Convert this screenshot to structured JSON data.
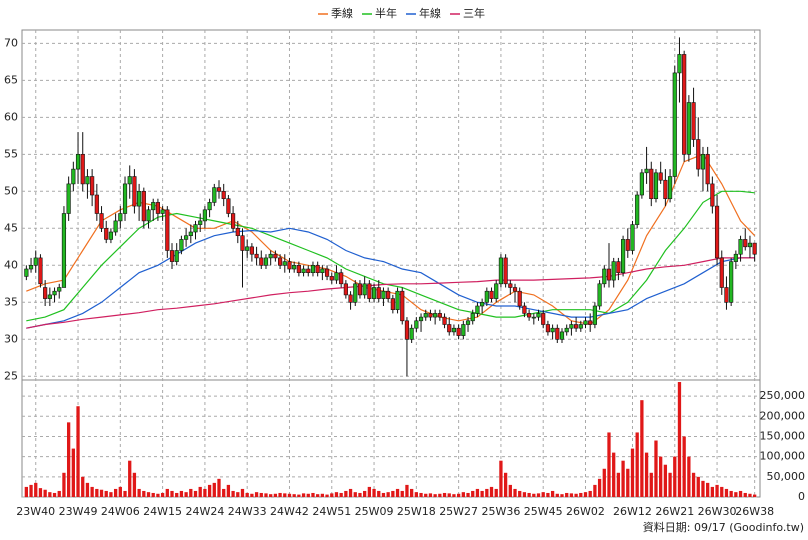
{
  "chart_data": {
    "type": "candlestick",
    "categories": [
      null,
      null,
      "23W40",
      null,
      null,
      null,
      null,
      null,
      null,
      null,
      null,
      "23W49",
      null,
      null,
      null,
      null,
      null,
      null,
      null,
      null,
      "24W06",
      null,
      null,
      null,
      null,
      null,
      null,
      null,
      null,
      "24W15",
      null,
      null,
      null,
      null,
      null,
      null,
      null,
      null,
      "24W24",
      null,
      null,
      null,
      null,
      null,
      null,
      null,
      null,
      "24W33",
      null,
      null,
      null,
      null,
      null,
      null,
      null,
      null,
      "24W42",
      null,
      null,
      null,
      null,
      null,
      null,
      null,
      null,
      "24W51",
      null,
      null,
      null,
      null,
      null,
      null,
      null,
      null,
      "25W09",
      null,
      null,
      null,
      null,
      null,
      null,
      null,
      null,
      "25W18",
      null,
      null,
      null,
      null,
      null,
      null,
      null,
      null,
      "25W27",
      null,
      null,
      null,
      null,
      null,
      null,
      null,
      null,
      "25W36",
      null,
      null,
      null,
      null,
      null,
      null,
      null,
      null,
      "25W45",
      null,
      null,
      null,
      null,
      null,
      null,
      null,
      null,
      "26W02",
      null,
      null,
      null,
      null,
      null,
      null,
      null,
      null,
      null,
      "26W12",
      null,
      null,
      null,
      null,
      null,
      null,
      null,
      null,
      "26W21",
      null,
      null,
      null,
      null,
      null,
      null,
      null,
      null,
      "26W30",
      null,
      null,
      null,
      null,
      null,
      null,
      null,
      "26W38"
    ],
    "ohlc": [
      [
        38.5,
        40,
        38,
        39.5
      ],
      [
        39.5,
        41,
        39,
        40
      ],
      [
        40,
        42,
        39,
        41
      ],
      [
        41,
        41.5,
        37,
        37.5
      ],
      [
        37,
        38,
        34.5,
        35.5
      ],
      [
        35.5,
        37,
        34.5,
        36
      ],
      [
        36,
        37,
        35,
        36.5
      ],
      [
        36.5,
        37.5,
        35.5,
        37
      ],
      [
        37,
        48,
        37,
        47
      ],
      [
        47,
        52,
        46,
        51
      ],
      [
        51,
        54,
        50,
        53
      ],
      [
        53,
        58,
        51,
        55
      ],
      [
        55,
        58,
        50,
        51
      ],
      [
        51,
        53,
        49,
        52
      ],
      [
        52,
        53,
        48,
        49.5
      ],
      [
        49.5,
        51,
        46,
        47
      ],
      [
        47,
        48,
        44.5,
        45
      ],
      [
        45,
        46,
        43,
        43.5
      ],
      [
        43.5,
        45,
        43,
        44.5
      ],
      [
        44.5,
        47,
        44,
        46
      ],
      [
        46,
        48,
        45,
        47
      ],
      [
        47,
        52,
        46,
        51
      ],
      [
        51,
        53.5,
        49,
        52
      ],
      [
        52,
        53,
        47,
        48
      ],
      [
        48,
        51,
        46,
        50
      ],
      [
        50,
        50.5,
        45,
        46
      ],
      [
        46,
        48,
        45,
        47.5
      ],
      [
        47.5,
        49,
        46,
        48.5
      ],
      [
        48.5,
        49,
        46,
        47
      ],
      [
        47,
        48,
        46,
        47.5
      ],
      [
        47.5,
        48,
        41,
        42
      ],
      [
        42,
        43,
        39.5,
        40.5
      ],
      [
        40.5,
        43,
        40,
        42
      ],
      [
        42,
        44,
        41.5,
        43.5
      ],
      [
        43.5,
        45,
        42.5,
        44
      ],
      [
        44,
        45.5,
        43,
        44.5
      ],
      [
        44.5,
        46,
        43.5,
        45.5
      ],
      [
        45.5,
        47,
        44.5,
        46
      ],
      [
        46,
        48,
        45,
        47.5
      ],
      [
        47.5,
        49,
        46.5,
        48.5
      ],
      [
        48.5,
        51,
        48,
        50.5
      ],
      [
        50.5,
        51.5,
        49,
        50
      ],
      [
        50,
        51,
        48,
        49
      ],
      [
        49,
        49.5,
        46.5,
        47
      ],
      [
        47,
        48,
        44.5,
        45
      ],
      [
        45,
        46,
        43,
        44
      ],
      [
        44,
        45,
        37,
        42
      ],
      [
        42,
        43.5,
        41,
        42.5
      ],
      [
        42.5,
        43,
        40.5,
        41.5
      ],
      [
        41.5,
        42.5,
        40,
        41
      ],
      [
        41,
        42,
        39.5,
        40
      ],
      [
        40,
        41.5,
        39.5,
        41
      ],
      [
        41,
        42,
        40,
        41.5
      ],
      [
        41.5,
        42,
        40.5,
        41
      ],
      [
        41,
        41.5,
        39.5,
        40
      ],
      [
        40,
        41.5,
        39,
        40.5
      ],
      [
        40.5,
        41,
        39,
        39.5
      ],
      [
        39.5,
        40.5,
        39,
        40
      ],
      [
        40,
        40.5,
        38.5,
        39
      ],
      [
        39,
        40,
        38.5,
        39.5
      ],
      [
        39.5,
        40,
        38.5,
        39
      ],
      [
        39,
        40.5,
        38.5,
        40
      ],
      [
        40,
        40.5,
        38.5,
        39
      ],
      [
        39,
        40,
        38,
        39.5
      ],
      [
        39.5,
        40,
        38,
        38.5
      ],
      [
        38.5,
        39,
        37.5,
        38
      ],
      [
        38,
        40,
        37.5,
        39
      ],
      [
        39,
        39.5,
        37,
        37.5
      ],
      [
        37.5,
        38,
        35.5,
        36
      ],
      [
        36,
        36.5,
        34,
        35
      ],
      [
        35,
        38,
        34.5,
        37.5
      ],
      [
        37.5,
        38,
        35.5,
        36
      ],
      [
        36,
        38.5,
        35.5,
        37.5
      ],
      [
        37.5,
        38,
        35,
        35.5
      ],
      [
        35.5,
        37.5,
        35,
        37
      ],
      [
        37,
        38,
        35,
        35.5
      ],
      [
        35.5,
        37,
        34.5,
        36.5
      ],
      [
        36.5,
        37,
        35,
        35.5
      ],
      [
        35.5,
        36,
        33.5,
        34
      ],
      [
        34,
        37,
        33.5,
        36.5
      ],
      [
        36.5,
        37,
        32,
        32.5
      ],
      [
        32.5,
        33,
        25,
        30
      ],
      [
        30,
        32,
        29.5,
        31.5
      ],
      [
        31.5,
        33,
        31,
        32.5
      ],
      [
        32.5,
        33.5,
        31,
        33
      ],
      [
        33,
        34,
        32.5,
        33.5
      ],
      [
        33.5,
        34,
        32.5,
        33
      ],
      [
        33,
        34,
        32,
        33.5
      ],
      [
        33.5,
        34,
        32.5,
        33
      ],
      [
        33,
        33.5,
        31.5,
        32
      ],
      [
        32,
        33,
        30.5,
        31
      ],
      [
        31,
        32,
        30.5,
        31.5
      ],
      [
        31.5,
        32,
        30,
        30.5
      ],
      [
        30.5,
        32.5,
        30,
        32
      ],
      [
        32,
        33,
        31,
        32.5
      ],
      [
        32.5,
        34,
        32,
        33.5
      ],
      [
        33.5,
        35,
        33,
        34.5
      ],
      [
        34.5,
        35.5,
        33.5,
        35
      ],
      [
        35,
        37,
        34.5,
        36.5
      ],
      [
        36.5,
        37,
        35,
        35.5
      ],
      [
        35.5,
        38,
        35,
        37.5
      ],
      [
        37.5,
        41.5,
        37,
        41
      ],
      [
        41,
        41.5,
        37,
        37.5
      ],
      [
        37.5,
        38,
        36,
        37
      ],
      [
        37,
        37.5,
        35,
        36.5
      ],
      [
        36.5,
        37,
        34,
        34.5
      ],
      [
        34.5,
        35,
        33,
        33.5
      ],
      [
        33.5,
        34,
        32.5,
        33
      ],
      [
        33,
        33.5,
        32,
        33
      ],
      [
        33,
        34,
        32.5,
        33.5
      ],
      [
        33.5,
        34,
        31.5,
        32
      ],
      [
        32,
        32.5,
        30.5,
        31
      ],
      [
        31,
        32,
        30,
        31.5
      ],
      [
        31.5,
        32,
        29.5,
        30
      ],
      [
        30,
        31.5,
        29.5,
        31
      ],
      [
        31,
        32,
        30.5,
        31.5
      ],
      [
        31.5,
        32.5,
        30.5,
        32
      ],
      [
        32,
        33,
        31,
        31.5
      ],
      [
        31.5,
        32.5,
        31,
        32
      ],
      [
        32,
        33,
        31.5,
        32.5
      ],
      [
        32.5,
        33.5,
        31,
        32
      ],
      [
        32,
        35,
        31.5,
        34.5
      ],
      [
        34.5,
        38,
        34,
        37.5
      ],
      [
        37.5,
        40,
        37,
        39.5
      ],
      [
        39.5,
        43,
        37,
        38
      ],
      [
        38,
        41,
        37,
        40.5
      ],
      [
        40.5,
        41,
        38,
        39
      ],
      [
        39,
        44,
        38.5,
        43.5
      ],
      [
        43.5,
        45,
        41,
        42
      ],
      [
        42,
        46,
        41.5,
        45.5
      ],
      [
        45.5,
        50,
        45,
        49.5
      ],
      [
        49.5,
        53,
        49,
        52.5
      ],
      [
        52.5,
        56,
        51,
        53
      ],
      [
        53,
        54,
        48,
        49
      ],
      [
        49,
        53,
        48.5,
        52.5
      ],
      [
        52.5,
        54,
        51,
        51.5
      ],
      [
        51.5,
        53,
        48,
        49
      ],
      [
        49,
        53,
        48.5,
        52
      ],
      [
        52,
        67,
        51,
        66
      ],
      [
        66,
        70.8,
        62,
        68.5
      ],
      [
        68.5,
        69,
        54,
        55
      ],
      [
        55,
        63,
        54,
        62
      ],
      [
        62,
        64,
        56,
        57
      ],
      [
        57,
        60,
        52,
        53
      ],
      [
        53,
        56,
        50,
        55
      ],
      [
        55,
        56,
        50,
        51
      ],
      [
        51,
        52,
        47,
        48
      ],
      [
        48,
        49.5,
        40,
        41
      ],
      [
        41,
        42,
        36,
        37
      ],
      [
        37,
        38.5,
        34,
        35
      ],
      [
        35,
        41,
        34.5,
        40.5
      ],
      [
        40.5,
        42,
        39.5,
        41.5
      ],
      [
        41.5,
        44,
        40.5,
        43.5
      ],
      [
        43.5,
        45,
        42,
        42.5
      ],
      [
        42.5,
        44,
        41,
        43
      ],
      [
        43,
        43,
        40.5,
        41.5
      ]
    ],
    "up_color": "#22b722",
    "down_color": "#e01818",
    "ylim": [
      24.5,
      71.8
    ],
    "yticks": [
      25,
      30,
      35,
      40,
      45,
      50,
      55,
      60,
      65,
      70
    ],
    "grid": true,
    "volume": {
      "color": "#e01818",
      "ylim": [
        0,
        290000
      ],
      "yticks": [
        0,
        {
          "value": 50000,
          "label": "50,000"
        },
        {
          "value": 100000,
          "label": "100,000"
        },
        {
          "value": 150000,
          "label": "150,000"
        },
        {
          "value": 200000,
          "label": "200,000"
        },
        {
          "value": 250000,
          "label": "250,000"
        }
      ],
      "values": [
        25000,
        30000,
        35000,
        22000,
        18000,
        12000,
        10000,
        15000,
        60000,
        185000,
        120000,
        225000,
        50000,
        35000,
        25000,
        20000,
        18000,
        15000,
        12000,
        20000,
        25000,
        15000,
        90000,
        60000,
        20000,
        15000,
        12000,
        10000,
        8000,
        10000,
        20000,
        15000,
        10000,
        15000,
        12000,
        20000,
        15000,
        25000,
        20000,
        30000,
        35000,
        45000,
        20000,
        30000,
        15000,
        12000,
        20000,
        10000,
        8000,
        12000,
        10000,
        9000,
        7000,
        8000,
        10000,
        9000,
        8000,
        7000,
        6000,
        9000,
        8000,
        10000,
        7000,
        8000,
        6000,
        9000,
        12000,
        10000,
        15000,
        20000,
        12000,
        10000,
        15000,
        25000,
        20000,
        15000,
        10000,
        12000,
        15000,
        20000,
        15000,
        30000,
        20000,
        12000,
        10000,
        8000,
        9000,
        7000,
        8000,
        10000,
        9000,
        7000,
        8000,
        12000,
        10000,
        15000,
        20000,
        15000,
        20000,
        25000,
        20000,
        90000,
        60000,
        30000,
        20000,
        15000,
        12000,
        10000,
        8000,
        9000,
        12000,
        10000,
        15000,
        8000,
        7000,
        10000,
        9000,
        8000,
        10000,
        12000,
        15000,
        30000,
        45000,
        70000,
        160000,
        110000,
        60000,
        90000,
        70000,
        120000,
        160000,
        240000,
        110000,
        60000,
        140000,
        100000,
        80000,
        60000,
        100000,
        285000,
        150000,
        100000,
        60000,
        50000,
        40000,
        35000,
        25000,
        30000,
        25000,
        20000,
        15000,
        12000,
        15000,
        10000,
        8000,
        6000
      ]
    },
    "ma": {
      "x": [
        0,
        4,
        8,
        12,
        16,
        20,
        24,
        28,
        32,
        36,
        40,
        44,
        48,
        52,
        56,
        60,
        64,
        68,
        72,
        76,
        80,
        84,
        88,
        92,
        96,
        100,
        104,
        108,
        112,
        116,
        120,
        124,
        128,
        132,
        136,
        140,
        144,
        148,
        152,
        155
      ],
      "series": [
        {
          "name": "季線",
          "color": "#f07020",
          "values": [
            36.5,
            37.5,
            38,
            42,
            46,
            47.5,
            48.5,
            48,
            46.5,
            45,
            45,
            46,
            44.5,
            42,
            40.5,
            40,
            39.5,
            38.5,
            37,
            36.5,
            36,
            34,
            33,
            32.5,
            33,
            35,
            36.5,
            36,
            34.5,
            32.5,
            32,
            34,
            38,
            44,
            48,
            54,
            55,
            51,
            46,
            44
          ]
        },
        {
          "name": "半年",
          "color": "#20c020",
          "values": [
            32.5,
            33,
            34,
            37,
            40,
            42.5,
            45,
            46.5,
            47,
            46.5,
            46,
            45.5,
            45,
            44,
            43,
            42,
            41,
            39.5,
            38.5,
            37.5,
            37,
            36,
            35,
            34,
            33.5,
            33,
            33,
            33.5,
            34,
            34,
            34,
            33.5,
            35,
            38,
            42,
            45,
            48.5,
            50,
            50,
            49.8
          ]
        },
        {
          "name": "年線",
          "color": "#2060d0",
          "values": [
            31.5,
            32,
            32.5,
            33.5,
            35,
            37,
            39,
            40,
            41.5,
            43,
            44,
            44.5,
            44.7,
            44.5,
            45,
            44.5,
            43.5,
            42,
            41,
            40.5,
            39.5,
            39,
            37.5,
            36,
            35,
            34.5,
            34.5,
            34,
            33.5,
            33,
            33,
            33.5,
            34,
            35.5,
            36.5,
            37.5,
            39,
            40.5,
            41,
            41
          ]
        },
        {
          "name": "三年",
          "color": "#d02060",
          "values": [
            31.5,
            32,
            32.3,
            32.7,
            33,
            33.3,
            33.6,
            34,
            34.2,
            34.5,
            34.8,
            35.2,
            35.6,
            36,
            36.3,
            36.5,
            36.8,
            37,
            37.2,
            37.4,
            37.5,
            37.5,
            37.6,
            37.7,
            37.8,
            38,
            38,
            38,
            38.1,
            38.2,
            38.3,
            38.5,
            39,
            39.5,
            39.8,
            40,
            40.5,
            41,
            41,
            41
          ]
        }
      ]
    },
    "legend": "top",
    "source": "資料日期: 09/17 (Goodinfo.tw)"
  }
}
